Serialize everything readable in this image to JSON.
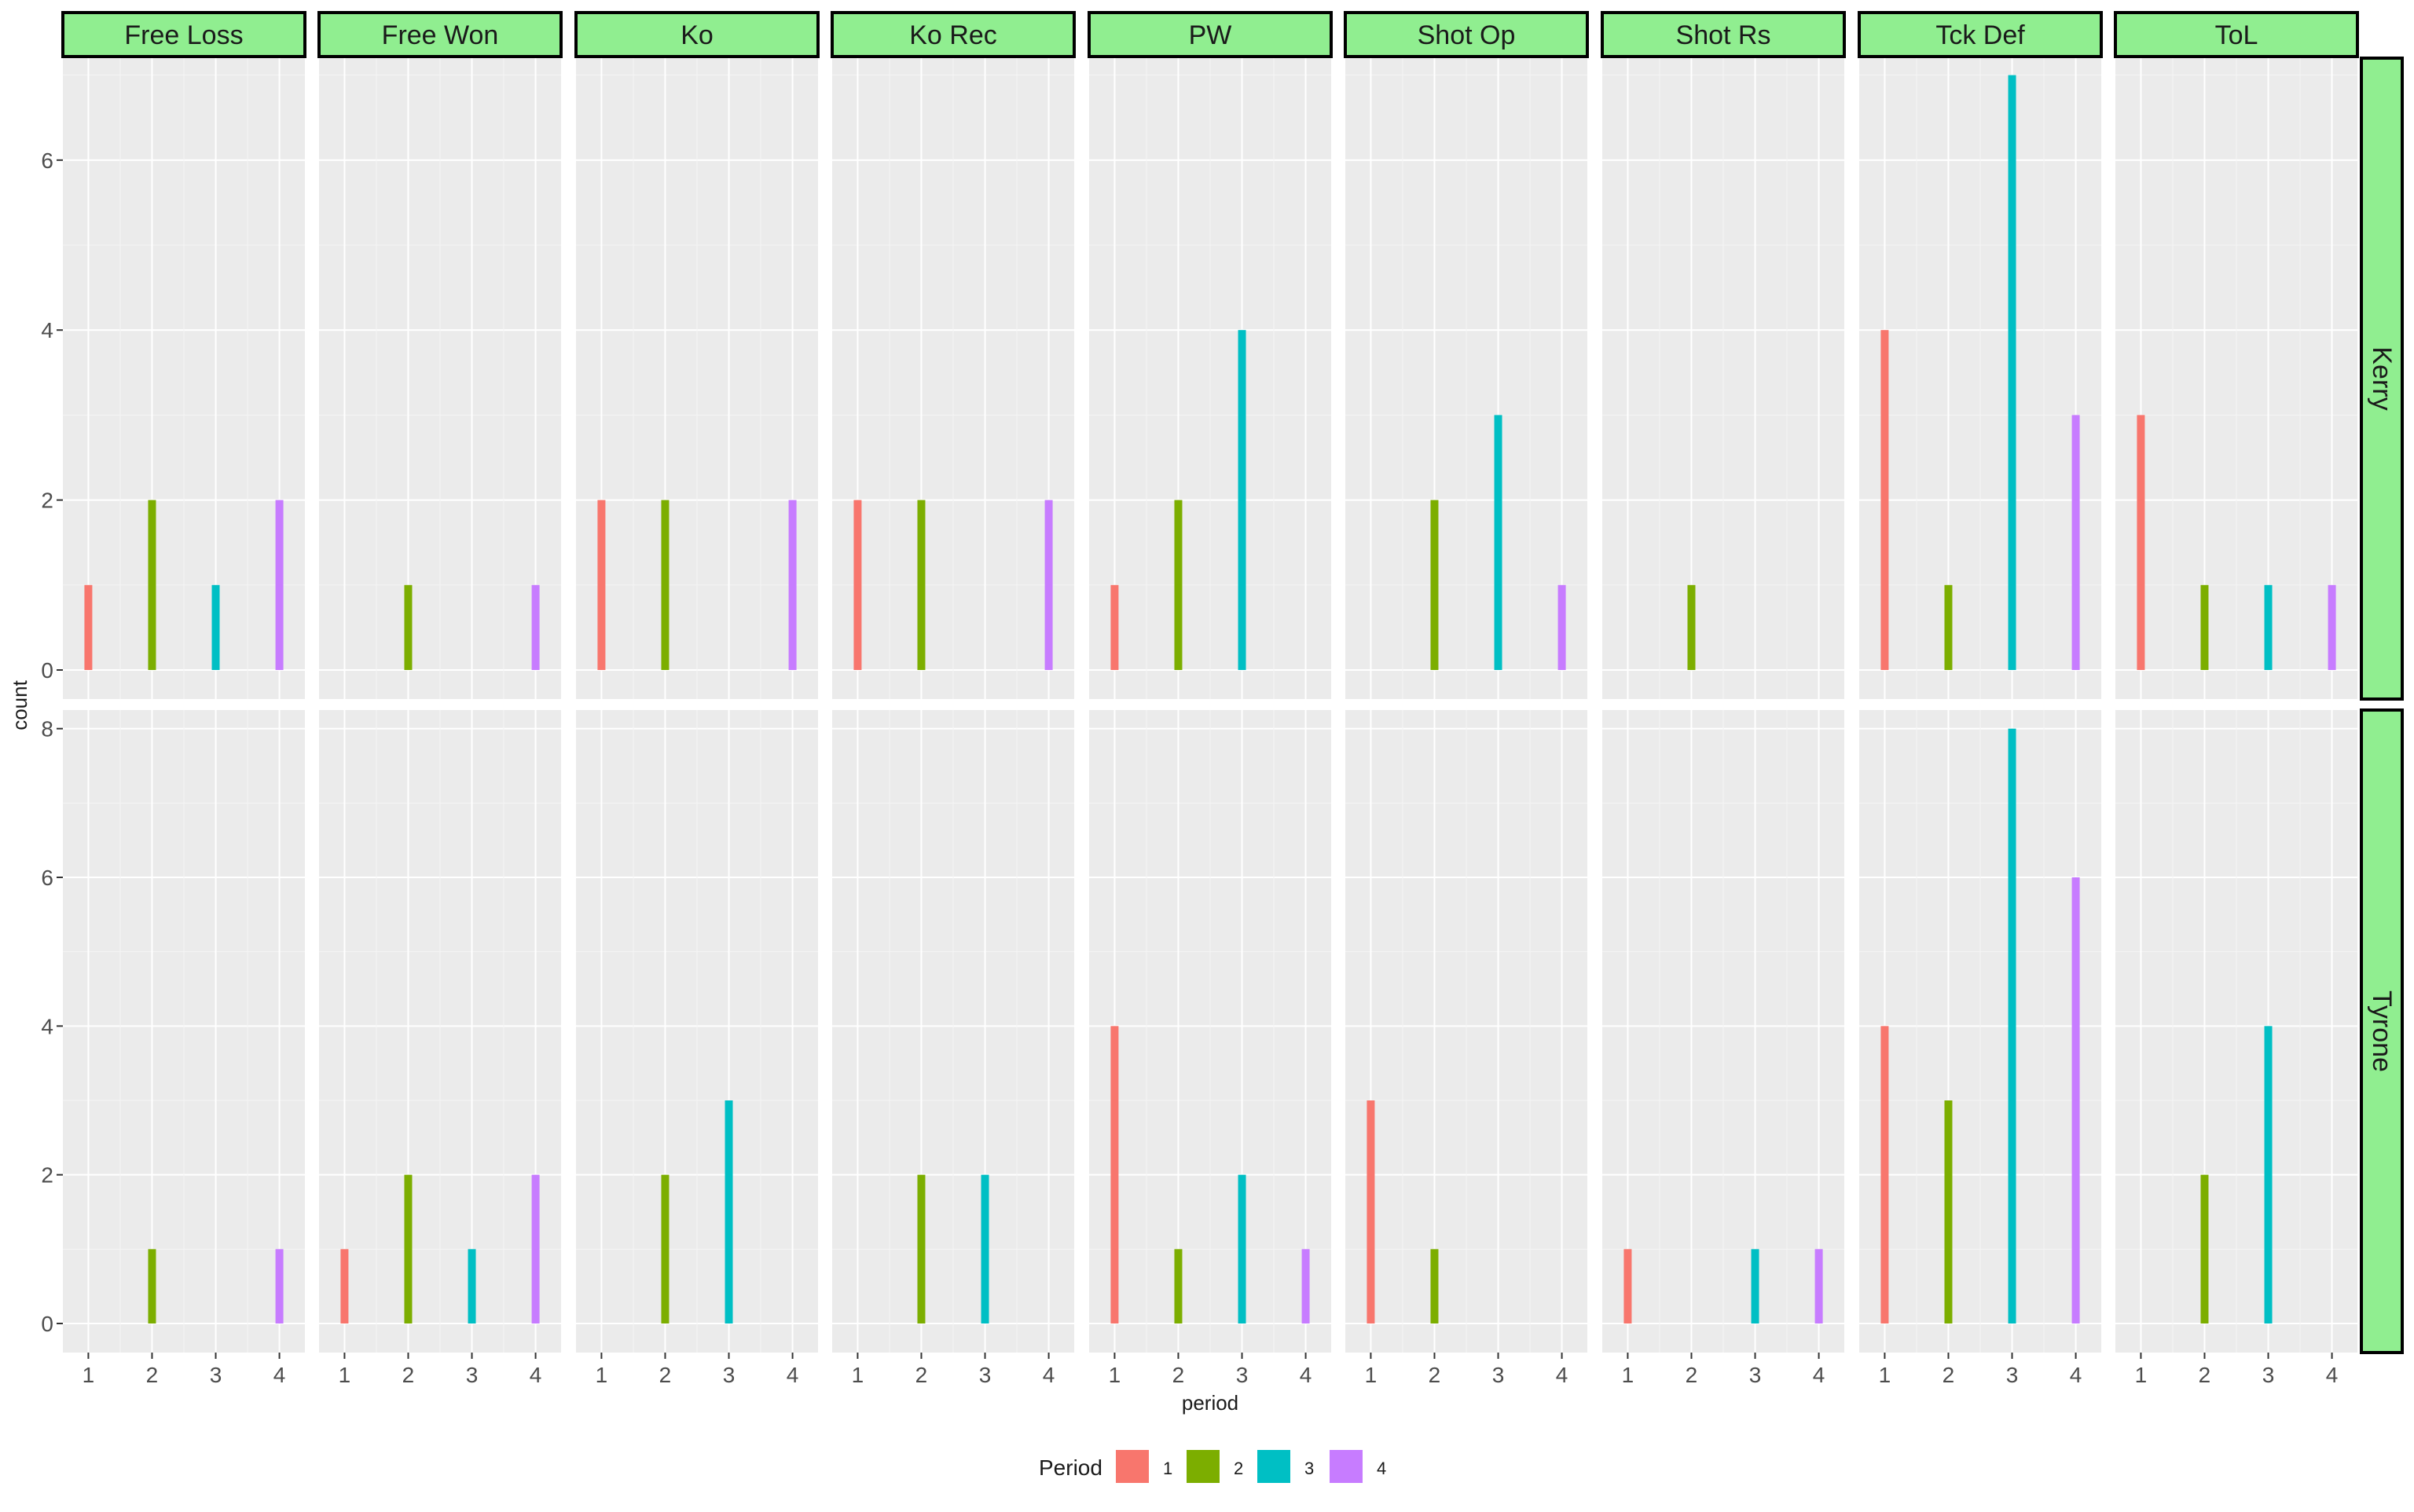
{
  "chart_data": {
    "type": "bar",
    "facet_columns": [
      "Free Loss",
      "Free Won",
      "Ko",
      "Ko Rec",
      "PW",
      "Shot Op",
      "Shot Rs",
      "Tck Def",
      "ToL"
    ],
    "facet_rows": [
      "Kerry",
      "Tyrone"
    ],
    "categories": [
      1,
      2,
      3,
      4
    ],
    "xlabel": "period",
    "ylabel": "count",
    "x_tick_labels": [
      "1",
      "2",
      "3",
      "4"
    ],
    "rows": [
      {
        "ylim": [
          0,
          7.2
        ],
        "y_ticks": [
          0,
          2,
          4,
          6
        ],
        "values": {
          "Free Loss": [
            1,
            2,
            1,
            2
          ],
          "Free Won": [
            0,
            1,
            0,
            1
          ],
          "Ko": [
            2,
            2,
            0,
            2
          ],
          "Ko Rec": [
            2,
            2,
            0,
            2
          ],
          "PW": [
            1,
            2,
            4,
            0
          ],
          "Shot Op": [
            0,
            2,
            3,
            1
          ],
          "Shot Rs": [
            0,
            1,
            0,
            0
          ],
          "Tck Def": [
            4,
            1,
            7,
            3
          ],
          "ToL": [
            3,
            1,
            1,
            1
          ]
        }
      },
      {
        "ylim": [
          0,
          8.25
        ],
        "y_ticks": [
          0,
          2,
          4,
          6,
          8
        ],
        "values": {
          "Free Loss": [
            0,
            1,
            0,
            1
          ],
          "Free Won": [
            1,
            2,
            1,
            2
          ],
          "Ko": [
            0,
            2,
            3,
            0
          ],
          "Ko Rec": [
            0,
            2,
            2,
            0
          ],
          "PW": [
            4,
            1,
            2,
            1
          ],
          "Shot Op": [
            3,
            1,
            0,
            0
          ],
          "Shot Rs": [
            1,
            0,
            1,
            1
          ],
          "Tck Def": [
            4,
            3,
            8,
            6
          ],
          "ToL": [
            0,
            2,
            4,
            0
          ]
        }
      }
    ],
    "series": [
      {
        "name": "1",
        "color": "#F8766D"
      },
      {
        "name": "2",
        "color": "#7CAE00"
      },
      {
        "name": "3",
        "color": "#00BFC4"
      },
      {
        "name": "4",
        "color": "#C77CFF"
      }
    ],
    "legend": {
      "title": "Period",
      "position": "bottom"
    },
    "strip_color": "#90EE90",
    "panel_background": "#EBEBEB",
    "grid": true
  }
}
